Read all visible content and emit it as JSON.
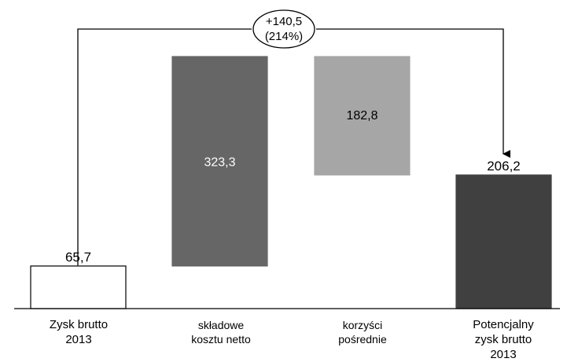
{
  "chart_data": {
    "type": "bar",
    "subtype": "waterfall",
    "categories": [
      "Zysk brutto\n2013",
      "składowe\nkosztu netto",
      "korzyści\npośrednie",
      "Potencjalny\nzysk brutto\n2013"
    ],
    "bars": [
      {
        "category": "Zysk brutto\n2013",
        "start": 0,
        "end": 65.7,
        "label": "65,7",
        "color": "#ffffff",
        "label_color": "#000000"
      },
      {
        "category": "składowe\nkosztu netto",
        "start": 65.7,
        "end": 389.0,
        "label": "323,3",
        "color": "#666666",
        "label_color": "#ffffff"
      },
      {
        "category": "korzyści\npośrednie",
        "start": 206.2,
        "end": 389.0,
        "label": "182,8",
        "color": "#a6a6a6",
        "label_color": "#000000"
      },
      {
        "category": "Potencjalny\nzysk brutto\n2013",
        "start": 0,
        "end": 206.2,
        "label": "206,2",
        "color": "#404040",
        "label_color": "#000000"
      }
    ],
    "annotation": {
      "line1": "+140,5",
      "line2": "(214%)"
    },
    "ylim": [
      0,
      395
    ],
    "grid": false,
    "legend": "none"
  }
}
